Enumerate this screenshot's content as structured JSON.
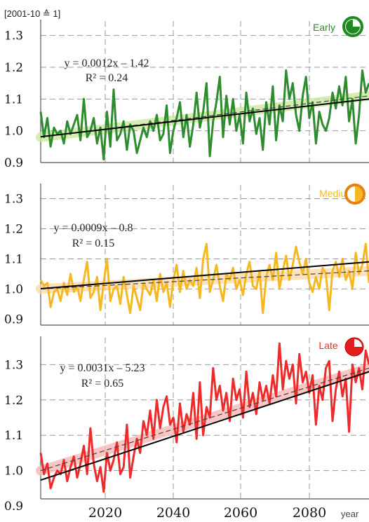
{
  "unit_label": "[2001-10 ≙ 1]",
  "x_axis_label": "year",
  "x_ticks": [
    "2020",
    "2040",
    "2060",
    "2080"
  ],
  "chart_data": [
    {
      "type": "line",
      "title": "Early",
      "icon": "clock-quarter-icon",
      "color": "#2e8b2e",
      "band_color": "#c8e89a",
      "ylim": [
        0.9,
        1.35
      ],
      "yticks": [
        "0.9",
        "1.0",
        "1.1",
        "1.2",
        "1.3"
      ],
      "ytick_values": [
        0.9,
        1.0,
        1.1,
        1.2,
        1.3
      ],
      "xlim": [
        2001,
        2100
      ],
      "equation": "y = 0.0012x – 1.42",
      "r2_label": "R² = 0.24",
      "trend": {
        "slope": 0.0012,
        "intercept": -1.42
      },
      "moving_avg_start": 0.98,
      "moving_avg_end": 1.11,
      "series": [
        {
          "x_start": 2001,
          "values": [
            1.06,
            0.98,
            1.04,
            0.95,
            1.01,
            0.99,
            1.0,
            0.96,
            1.03,
            0.99,
            1.02,
            1.05,
            0.97,
            1.1,
            0.98,
            1.0,
            1.04,
            0.96,
            1.01,
            0.91,
            1.06,
            0.95,
            1.13,
            0.97,
            0.99,
            1.03,
            0.94,
            1.02,
            1.0,
            0.93,
            0.97,
            1.01,
            0.98,
            1.03,
            1.0,
            1.05,
            0.97,
            0.99,
            1.08,
            0.93,
            1.0,
            1.04,
            1.09,
            0.98,
            1.05,
            0.95,
            1.02,
            1.12,
            1.01,
            1.06,
            1.15,
            0.92,
            1.03,
            1.09,
            1.17,
            0.98,
            1.11,
            1.02,
            1.1,
            1.0,
            1.05,
            0.96,
            1.12,
            1.03,
            1.07,
            0.99,
            1.04,
            0.94,
            1.09,
            1.02,
            1.14,
            0.97,
            1.08,
            1.03,
            1.19,
            1.1,
            1.15,
            1.05,
            1.0,
            1.11,
            1.17,
            1.04,
            1.09,
            0.96,
            1.06,
            1.02,
            1.0,
            1.04,
            1.12,
            1.07,
            1.14,
            1.08,
            1.17,
            1.03,
            1.1,
            0.96,
            1.05,
            1.19,
            1.12,
            1.15
          ]
        }
      ]
    },
    {
      "type": "line",
      "title": "Medium",
      "icon": "clock-half-icon",
      "color": "#f5b820",
      "band_color": "#fbd7a8",
      "ylim": [
        0.88,
        1.35
      ],
      "yticks": [
        "0.9",
        "1.0",
        "1.1",
        "1.2",
        "1.3"
      ],
      "ytick_values": [
        0.9,
        1.0,
        1.1,
        1.2,
        1.3
      ],
      "xlim": [
        2001,
        2100
      ],
      "equation": "y = 0.0009x – 0.8",
      "r2_label": "R² = 0.15",
      "trend": {
        "slope": 0.0009,
        "intercept": -0.8
      },
      "moving_avg_start": 1.0,
      "moving_avg_end": 1.06,
      "series": [
        {
          "x_start": 2001,
          "values": [
            1.03,
            1.01,
            1.02,
            0.94,
            0.99,
            1.0,
            0.96,
            1.02,
            0.98,
            1.05,
            0.99,
            1.01,
            0.96,
            1.03,
            1.09,
            0.97,
            0.99,
            1.04,
            0.93,
            1.02,
            1.1,
            0.96,
            1.0,
            1.01,
            0.95,
            1.04,
            0.98,
            0.92,
            1.01,
            0.97,
            0.93,
            1.02,
            1.0,
            0.98,
            1.03,
            0.96,
            1.05,
            0.99,
            1.02,
            0.94,
            1.03,
            1.08,
            0.99,
            1.06,
            1.0,
            1.03,
            1.01,
            1.07,
            0.97,
            1.1,
            1.15,
            0.99,
            1.03,
            1.08,
            1.01,
            0.96,
            1.05,
            1.03,
            1.07,
            1.0,
            1.03,
            0.98,
            1.05,
            1.09,
            1.01,
            1.0,
            1.06,
            0.92,
            1.04,
            1.08,
            1.03,
            1.12,
            1.0,
            1.06,
            1.11,
            1.03,
            1.08,
            1.14,
            1.09,
            1.05,
            1.1,
            1.02,
            0.99,
            1.04,
            1.0,
            1.07,
            1.05,
            0.93,
            1.06,
            1.09,
            1.04,
            1.1,
            1.03,
            1.06,
            1.0,
            1.12,
            1.05,
            1.08,
            1.15,
            1.02
          ]
        }
      ]
    },
    {
      "type": "line",
      "title": "Late",
      "icon": "clock-three-quarter-icon",
      "color": "#ee2b2b",
      "band_color": "#f8b4b4",
      "ylim": [
        0.92,
        1.38
      ],
      "yticks": [
        "0.9",
        "1.0",
        "1.1",
        "1.2",
        "1.3"
      ],
      "ytick_values": [
        0.9,
        1.0,
        1.1,
        1.2,
        1.3
      ],
      "xlim": [
        2001,
        2100
      ],
      "equation": "y = 0.0031x – 5.23",
      "r2_label": "R² = 0.65",
      "trend": {
        "slope": 0.0031,
        "intercept": -5.23
      },
      "moving_avg_start": 1.0,
      "moving_avg_end": 1.29,
      "series": [
        {
          "x_start": 2001,
          "values": [
            1.05,
            0.99,
            1.02,
            0.95,
            0.98,
            1.0,
            0.99,
            1.03,
            0.97,
            1.01,
            1.04,
            0.98,
            1.02,
            1.07,
            0.99,
            1.12,
            1.02,
            0.97,
            1.01,
            0.94,
            1.05,
            1.0,
            1.03,
            1.08,
            0.99,
            1.01,
            1.13,
            0.98,
            1.04,
            1.09,
            1.05,
            1.14,
            1.1,
            1.17,
            1.09,
            1.2,
            1.12,
            1.18,
            1.21,
            1.13,
            1.15,
            1.08,
            1.19,
            1.11,
            1.16,
            1.13,
            1.22,
            1.09,
            1.25,
            1.1,
            1.18,
            1.15,
            1.29,
            1.2,
            1.24,
            1.17,
            1.22,
            1.14,
            1.26,
            1.2,
            1.23,
            1.15,
            1.28,
            1.18,
            1.22,
            1.16,
            1.25,
            1.2,
            1.24,
            1.19,
            1.27,
            1.21,
            1.36,
            1.23,
            1.31,
            1.26,
            1.3,
            1.19,
            1.33,
            1.25,
            1.28,
            1.22,
            1.27,
            1.13,
            1.24,
            1.2,
            1.29,
            1.31,
            1.14,
            1.23,
            1.28,
            1.21,
            1.26,
            1.11,
            1.3,
            1.25,
            1.29,
            1.23,
            1.34,
            1.3
          ]
        }
      ]
    }
  ]
}
